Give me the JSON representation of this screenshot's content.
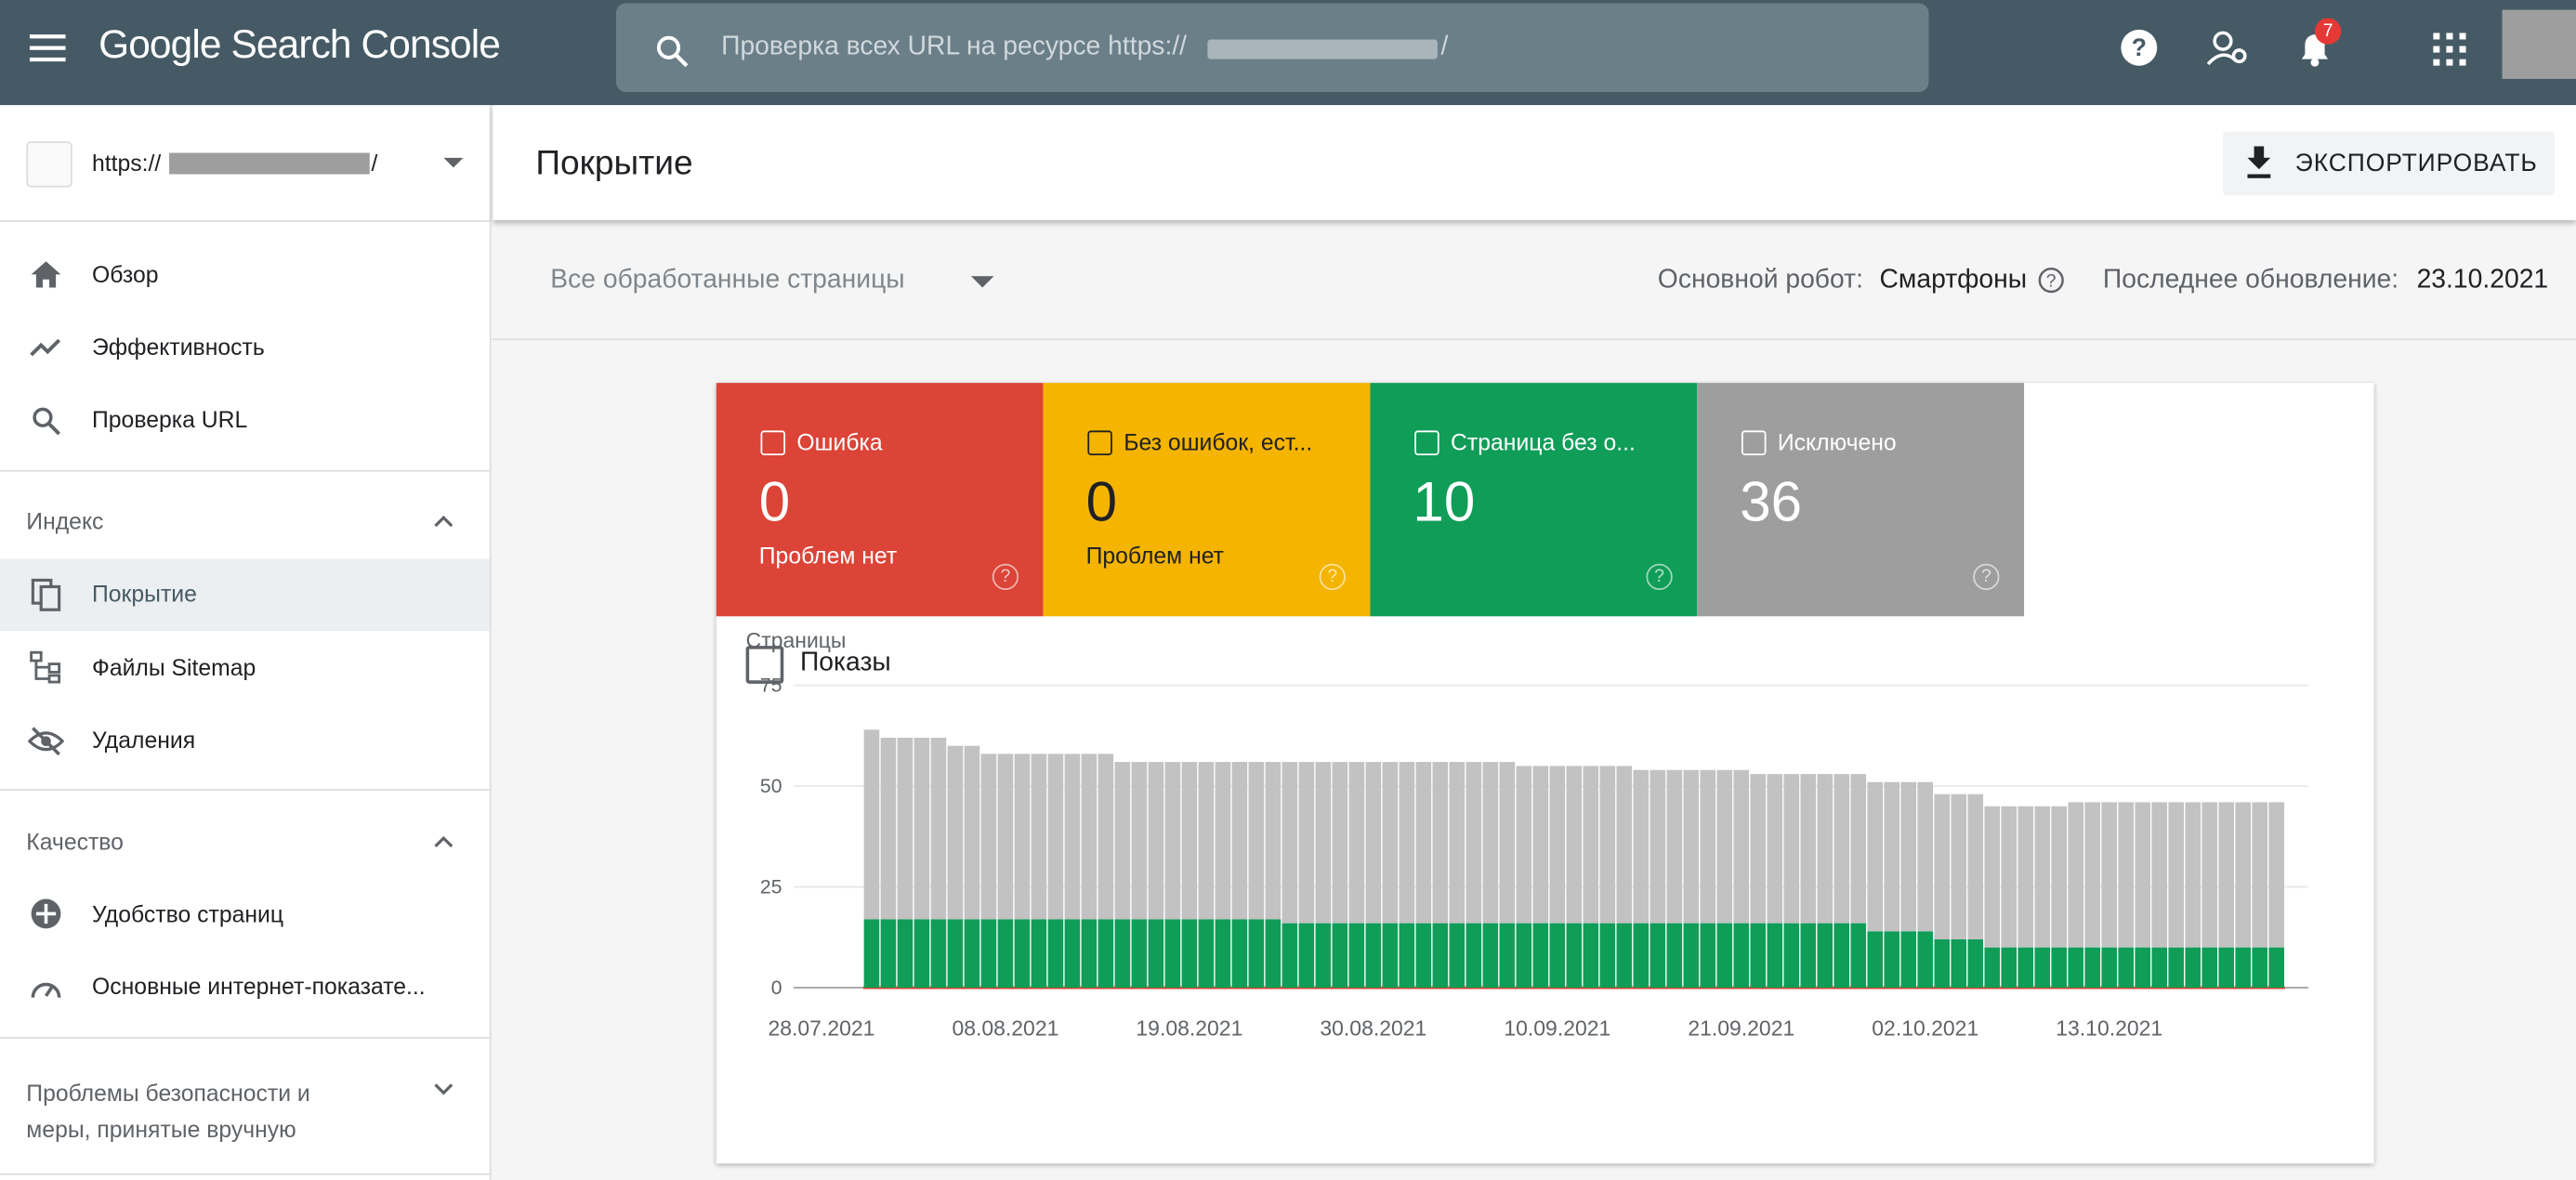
{
  "header": {
    "product": "Google Search Console",
    "search_placeholder": "Проверка всех URL на ресурсе https://",
    "search_suffix": "/",
    "notifications": "7"
  },
  "sidebar": {
    "property_prefix": "https://",
    "property_suffix": "/",
    "items": [
      "Обзор",
      "Эффективность",
      "Проверка URL"
    ],
    "index_section": "Индекс",
    "index_items": [
      "Покрытие",
      "Файлы Sitemap",
      "Удаления"
    ],
    "quality_section": "Качество",
    "quality_items": [
      "Удобство страниц",
      "Основные интернет-показате..."
    ],
    "security_section": "Проблемы безопасности и меры, принятые вручную"
  },
  "page": {
    "title": "Покрытие",
    "export": "ЭКСПОРТИРОВАТЬ",
    "filter": "Все обработанные страницы",
    "crawler_label": "Основной робот:",
    "crawler": "Смартфоны",
    "updated_label": "Последнее обновление:",
    "updated": "23.10.2021"
  },
  "cards": [
    {
      "label": "Ошибка",
      "value": "0",
      "sub": "Проблем нет",
      "color": "#db4437"
    },
    {
      "label": "Без ошибок, ест...",
      "value": "0",
      "sub": "Проблем нет",
      "color": "#f4b400"
    },
    {
      "label": "Страница без о...",
      "value": "10",
      "color": "#0f9d58"
    },
    {
      "label": "Исключено",
      "value": "36",
      "color": "#9e9e9e"
    }
  ],
  "impressions": "Показы",
  "chart_data": {
    "type": "bar",
    "stacked": true,
    "y_label": "Страницы",
    "ylim": [
      0,
      75
    ],
    "yticks": [
      0,
      25,
      50,
      75
    ],
    "grid": true,
    "xticks": [
      "28.07.2021",
      "08.08.2021",
      "19.08.2021",
      "30.08.2021",
      "10.09.2021",
      "21.09.2021",
      "02.10.2021",
      "13.10.2021"
    ],
    "x": [
      "31.07.2021",
      "01.08.2021",
      "02.08.2021",
      "03.08.2021",
      "04.08.2021",
      "05.08.2021",
      "06.08.2021",
      "07.08.2021",
      "08.08.2021",
      "09.08.2021",
      "10.08.2021",
      "11.08.2021",
      "12.08.2021",
      "13.08.2021",
      "14.08.2021",
      "15.08.2021",
      "16.08.2021",
      "17.08.2021",
      "18.08.2021",
      "19.08.2021",
      "20.08.2021",
      "21.08.2021",
      "22.08.2021",
      "23.08.2021",
      "24.08.2021",
      "25.08.2021",
      "26.08.2021",
      "27.08.2021",
      "28.08.2021",
      "29.08.2021",
      "30.08.2021",
      "31.08.2021",
      "01.09.2021",
      "02.09.2021",
      "03.09.2021",
      "04.09.2021",
      "05.09.2021",
      "06.09.2021",
      "07.09.2021",
      "08.09.2021",
      "09.09.2021",
      "10.09.2021",
      "11.09.2021",
      "12.09.2021",
      "13.09.2021",
      "14.09.2021",
      "15.09.2021",
      "16.09.2021",
      "17.09.2021",
      "18.09.2021",
      "19.09.2021",
      "20.09.2021",
      "21.09.2021",
      "22.09.2021",
      "23.09.2021",
      "24.09.2021",
      "25.09.2021",
      "26.09.2021",
      "27.09.2021",
      "28.09.2021",
      "29.09.2021",
      "30.09.2021",
      "01.10.2021",
      "02.10.2021",
      "03.10.2021",
      "04.10.2021",
      "05.10.2021",
      "06.10.2021",
      "07.10.2021",
      "08.10.2021",
      "09.10.2021",
      "10.10.2021",
      "11.10.2021",
      "12.10.2021",
      "13.10.2021",
      "14.10.2021",
      "15.10.2021",
      "16.10.2021",
      "17.10.2021",
      "18.10.2021",
      "19.10.2021",
      "20.10.2021",
      "21.10.2021",
      "22.10.2021",
      "23.10.2021"
    ],
    "series": [
      {
        "color": "#db4437",
        "values": [
          0,
          0,
          0,
          0,
          0,
          0,
          0,
          0,
          0,
          0,
          0,
          0,
          0,
          0,
          0,
          0,
          0,
          0,
          0,
          0,
          0,
          0,
          0,
          0,
          0,
          0,
          0,
          0,
          0,
          0,
          0,
          0,
          0,
          0,
          0,
          0,
          0,
          0,
          0,
          0,
          0,
          0,
          0,
          0,
          0,
          0,
          0,
          0,
          0,
          0,
          0,
          0,
          0,
          0,
          0,
          0,
          0,
          0,
          0,
          0,
          0,
          0,
          0,
          0,
          0,
          0,
          0,
          0,
          0,
          0,
          0,
          0,
          0,
          0,
          0,
          0,
          0,
          0,
          0,
          0,
          0,
          0,
          0,
          0,
          0
        ]
      },
      {
        "color": "#0f9d58",
        "values": [
          17,
          17,
          17,
          17,
          17,
          17,
          17,
          17,
          17,
          17,
          17,
          17,
          17,
          17,
          17,
          17,
          17,
          17,
          17,
          17,
          17,
          17,
          17,
          17,
          17,
          16,
          16,
          16,
          16,
          16,
          16,
          16,
          16,
          16,
          16,
          16,
          16,
          16,
          16,
          16,
          16,
          16,
          16,
          16,
          16,
          16,
          16,
          16,
          16,
          16,
          16,
          16,
          16,
          16,
          16,
          16,
          16,
          16,
          16,
          16,
          14,
          14,
          14,
          14,
          12,
          12,
          12,
          10,
          10,
          10,
          10,
          10,
          10,
          10,
          10,
          10,
          10,
          10,
          10,
          10,
          10,
          10,
          10,
          10,
          10
        ]
      },
      {
        "color": "#c2c2c2",
        "values": [
          47,
          45,
          45,
          45,
          45,
          43,
          43,
          41,
          41,
          41,
          41,
          41,
          41,
          41,
          41,
          39,
          39,
          39,
          39,
          39,
          39,
          39,
          39,
          39,
          39,
          40,
          40,
          40,
          40,
          40,
          40,
          40,
          40,
          40,
          40,
          40,
          40,
          40,
          40,
          39,
          39,
          39,
          39,
          39,
          39,
          39,
          38,
          38,
          38,
          38,
          38,
          38,
          38,
          37,
          37,
          37,
          37,
          37,
          37,
          37,
          37,
          37,
          37,
          37,
          36,
          36,
          36,
          35,
          35,
          35,
          35,
          35,
          36,
          36,
          36,
          36,
          36,
          36,
          36,
          36,
          36,
          36,
          36,
          36,
          36
        ]
      }
    ]
  }
}
